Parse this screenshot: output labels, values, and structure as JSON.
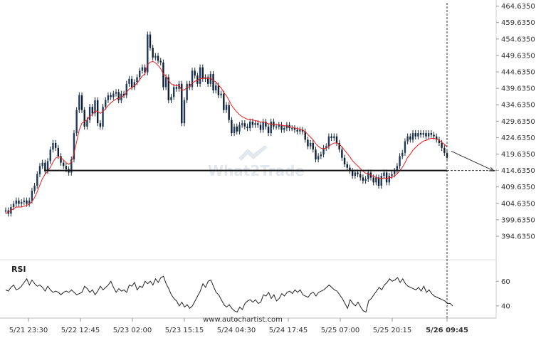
{
  "watermark": {
    "part1": "What",
    "part2": "2",
    "part3": "Trade"
  },
  "credit": "www.autochartist.com",
  "rsi_label": "RSI",
  "chart_data": [
    {
      "type": "candlestick",
      "title": "",
      "y_ticks": [
        "464.6350",
        "459.6350",
        "454.6350",
        "449.6350",
        "444.6350",
        "439.6350",
        "434.6350",
        "429.6350",
        "424.6350",
        "419.6350",
        "414.6350",
        "409.6350",
        "404.6350",
        "399.6350",
        "394.6350"
      ],
      "ylim": [
        390.3,
        465.2
      ],
      "x_ticks": [
        "5/21 23:30",
        "5/22 12:45",
        "5/23 02:00",
        "5/23 15:15",
        "5/24 04:30",
        "5/24 17:45",
        "5/25 07:00",
        "5/25 20:15",
        "5/26 09:45"
      ],
      "support_level": 414.635,
      "forecast_end_value": 414.5,
      "series": [
        {
          "name": "",
          "values": [
            402.5,
            401.5,
            403.5,
            404.5,
            405.5,
            404.5,
            405.0,
            405.5,
            404.5,
            405.5,
            408.5,
            410.0,
            413.5,
            416.0,
            417.0,
            414.5,
            417.5,
            421.0,
            423.0,
            421.5,
            419.0,
            417.0,
            416.0,
            415.0,
            414.0,
            418.0,
            426.0,
            433.0,
            437.5,
            433.0,
            428.0,
            430.0,
            434.0,
            432.0,
            436.0,
            429.0,
            428.0,
            434.0,
            436.0,
            437.5,
            437.0,
            438.0,
            438.5,
            436.0,
            438.0,
            437.5,
            441.0,
            442.5,
            440.0,
            441.5,
            443.0,
            445.0,
            446.0,
            444.5,
            456.0,
            452.0,
            449.0,
            449.5,
            448.0,
            447.5,
            440.0,
            443.0,
            436.0,
            437.0,
            440.0,
            439.5,
            441.0,
            429.0,
            436.0,
            441.0,
            440.0,
            445.0,
            443.5,
            441.0,
            446.0,
            442.5,
            443.0,
            441.0,
            444.0,
            439.0,
            440.5,
            437.5,
            438.0,
            433.0,
            434.5,
            430.0,
            426.0,
            428.0,
            426.5,
            428.5,
            429.0,
            428.0,
            427.5,
            429.5,
            428.5,
            429.0,
            428.5,
            427.0,
            429.5,
            428.0,
            426.0,
            429.5,
            428.0,
            428.0,
            428.5,
            427.0,
            427.5,
            428.5,
            427.5,
            427.5,
            427.0,
            426.5,
            427.0,
            426.5,
            424.0,
            422.0,
            423.0,
            421.0,
            418.0,
            419.0,
            419.5,
            421.5,
            422.0,
            425.0,
            424.5,
            425.0,
            423.0,
            421.0,
            418.5,
            416.5,
            415.5,
            414.5,
            413.0,
            414.0,
            413.5,
            412.5,
            411.5,
            412.0,
            414.0,
            412.5,
            411.0,
            412.5,
            410.0,
            413.0,
            414.0,
            411.0,
            413.0,
            413.5,
            414.5,
            416.0,
            419.0,
            420.0,
            423.5,
            425.0,
            424.0,
            426.0,
            425.0,
            426.0,
            425.5,
            426.0,
            425.0,
            426.0,
            425.5,
            425.0,
            424.0,
            423.0,
            421.5,
            420.0,
            418.5
          ]
        },
        {
          "name": "",
          "values": [
            401.5,
            402.0,
            402.5,
            403.0,
            403.5,
            403.5,
            403.5,
            403.8,
            404.0,
            404.4,
            405.2,
            406.4,
            408.2,
            410.2,
            412.2,
            413.5,
            414.4,
            415.6,
            417.2,
            418.4,
            418.8,
            418.6,
            417.8,
            417.0,
            416.5,
            417.2,
            419.8,
            423.4,
            427.0,
            429.0,
            429.6,
            430.0,
            431.2,
            431.6,
            432.8,
            432.6,
            432.0,
            432.6,
            433.4,
            434.4,
            435.2,
            435.8,
            436.4,
            436.6,
            437.0,
            437.4,
            438.4,
            439.4,
            439.8,
            440.4,
            441.2,
            442.2,
            443.4,
            444.0,
            446.8,
            447.6,
            447.8,
            447.4,
            446.6,
            445.6,
            444.0,
            443.4,
            442.0,
            441.0,
            440.6,
            440.4,
            440.6,
            439.0,
            439.2,
            439.8,
            440.2,
            441.2,
            441.8,
            442.0,
            442.6,
            442.6,
            442.8,
            442.6,
            442.8,
            442.0,
            441.6,
            440.6,
            439.8,
            438.4,
            437.4,
            436.0,
            434.4,
            433.4,
            432.4,
            431.6,
            431.0,
            430.6,
            430.2,
            430.2,
            430.0,
            429.8,
            429.6,
            429.4,
            429.4,
            429.2,
            428.8,
            428.8,
            428.6,
            428.6,
            428.6,
            428.4,
            428.2,
            428.2,
            428.0,
            427.8,
            427.6,
            427.4,
            427.2,
            427.0,
            426.4,
            425.6,
            424.8,
            424.0,
            422.8,
            422.0,
            421.4,
            421.2,
            421.4,
            422.0,
            422.6,
            423.0,
            423.0,
            422.6,
            421.8,
            420.8,
            419.8,
            418.8,
            417.6,
            416.8,
            416.0,
            415.2,
            414.4,
            413.8,
            413.6,
            413.2,
            412.8,
            412.6,
            412.2,
            412.2,
            412.4,
            412.2,
            412.4,
            412.6,
            413.0,
            413.6,
            414.6,
            415.6,
            417.0,
            418.6,
            419.6,
            420.8,
            421.6,
            422.4,
            423.0,
            423.6,
            423.8,
            424.2,
            424.4,
            424.4,
            424.2,
            423.8,
            423.2,
            422.6,
            421.8
          ]
        }
      ]
    },
    {
      "type": "line",
      "title": "RSI",
      "y_ticks": [
        "60",
        "40"
      ],
      "ylim": [
        33,
        66.5
      ],
      "values": [
        53,
        52,
        55,
        57,
        53,
        54,
        56,
        59,
        62,
        57,
        61,
        58,
        56,
        57,
        55,
        52,
        56,
        53,
        51,
        52,
        51,
        49,
        51,
        52,
        51,
        53,
        51,
        49,
        50,
        51,
        56,
        54,
        51,
        53,
        49,
        52,
        56,
        53,
        55,
        57,
        60,
        55,
        51,
        54,
        52,
        53,
        51,
        57,
        56,
        59,
        53,
        56,
        55,
        60,
        58,
        60,
        57,
        62,
        59,
        63,
        64,
        58,
        54,
        49,
        46,
        44,
        40,
        43,
        39,
        41,
        38,
        40,
        44,
        48,
        52,
        58,
        55,
        60,
        61,
        56,
        51,
        49,
        45,
        41,
        39,
        41,
        38,
        36,
        35,
        39,
        37,
        42,
        44,
        45,
        43,
        45,
        42,
        43,
        49,
        48,
        51,
        46,
        49,
        44,
        46,
        50,
        48,
        51,
        52,
        50,
        53,
        51,
        53,
        49,
        48,
        47,
        50,
        51,
        48,
        51,
        52,
        53,
        55,
        57,
        55,
        53,
        52,
        49,
        46,
        42,
        38,
        45,
        42,
        40,
        43,
        39,
        36,
        35,
        44,
        46,
        49,
        52,
        55,
        53,
        57,
        59,
        62,
        60,
        61,
        63,
        59,
        62,
        58,
        56,
        55,
        54,
        53,
        55,
        52,
        56,
        51,
        53,
        50,
        48,
        47,
        46,
        45,
        44,
        42,
        42,
        40
      ]
    }
  ]
}
